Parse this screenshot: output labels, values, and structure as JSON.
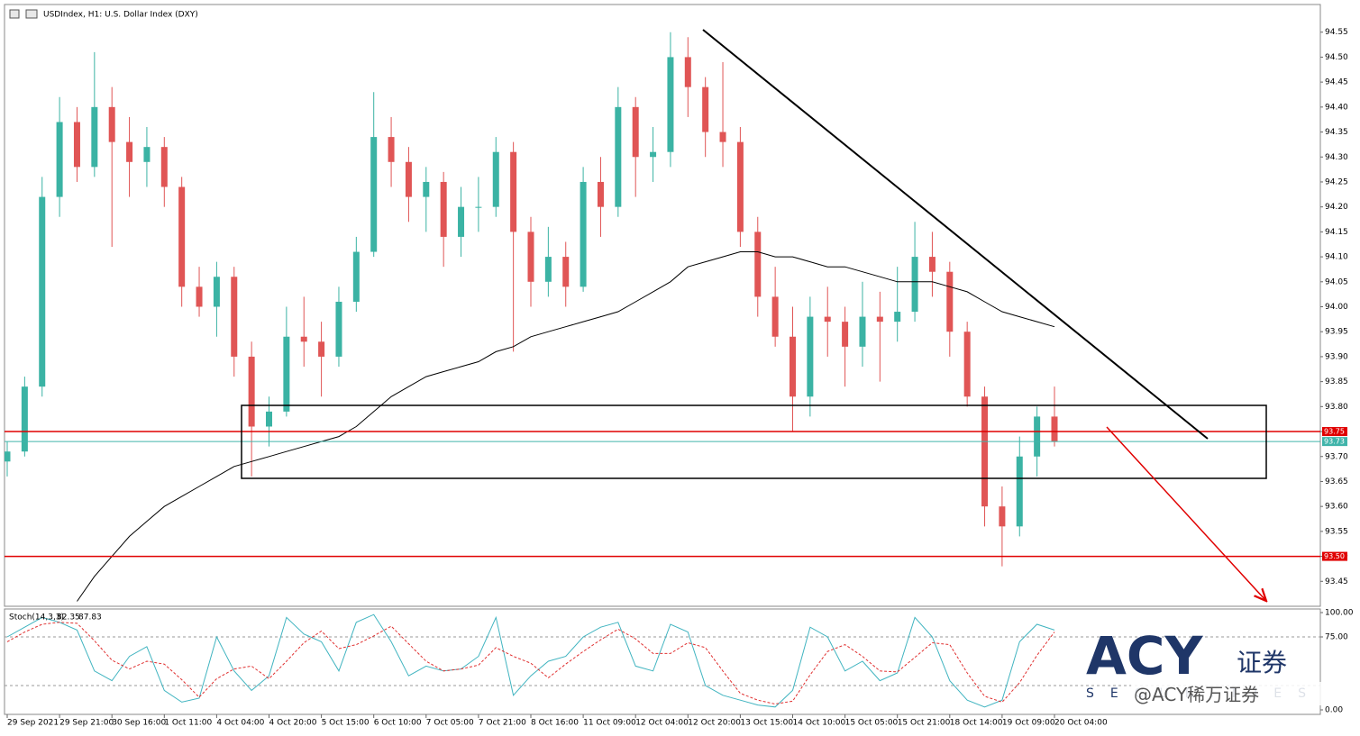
{
  "chart_data": {
    "type": "candlestick",
    "title": "USDIndex, H1:  U.S. Dollar Index (DXY)",
    "categories": [
      "29 Sep 2021",
      null,
      null,
      "29 Sep 21:00",
      null,
      null,
      "30 Sep 16:00",
      null,
      null,
      "1 Oct 11:00",
      null,
      null,
      "4 Oct 04:00",
      null,
      null,
      "4 Oct 20:00",
      null,
      null,
      "5 Oct 15:00",
      null,
      null,
      "6 Oct 10:00",
      null,
      null,
      "7 Oct 05:00",
      null,
      null,
      "7 Oct 21:00",
      null,
      null,
      "8 Oct 16:00",
      null,
      null,
      "11 Oct 09:00",
      null,
      null,
      "12 Oct 04:00",
      null,
      null,
      "12 Oct 20:00",
      null,
      null,
      "13 Oct 15:00",
      null,
      null,
      "14 Oct 10:00",
      null,
      null,
      "15 Oct 05:00",
      null,
      null,
      "15 Oct 21:00",
      null,
      null,
      "18 Oct 14:00",
      null,
      null,
      "19 Oct 09:00",
      null,
      null,
      "20 Oct 04:00"
    ],
    "ohlc": [
      [
        93.69,
        93.73,
        93.66,
        93.71
      ],
      [
        93.71,
        93.86,
        93.7,
        93.84
      ],
      [
        93.84,
        94.26,
        93.82,
        94.22
      ],
      [
        94.22,
        94.42,
        94.18,
        94.37
      ],
      [
        94.37,
        94.4,
        94.25,
        94.28
      ],
      [
        94.28,
        94.51,
        94.26,
        94.4
      ],
      [
        94.4,
        94.44,
        94.12,
        94.33
      ],
      [
        94.33,
        94.38,
        94.22,
        94.29
      ],
      [
        94.29,
        94.36,
        94.24,
        94.32
      ],
      [
        94.32,
        94.34,
        94.2,
        94.24
      ],
      [
        94.24,
        94.26,
        94.0,
        94.04
      ],
      [
        94.04,
        94.08,
        93.98,
        94.0
      ],
      [
        94.0,
        94.09,
        93.94,
        94.06
      ],
      [
        94.06,
        94.08,
        93.86,
        93.9
      ],
      [
        93.9,
        93.93,
        93.66,
        93.76
      ],
      [
        93.76,
        93.82,
        93.72,
        93.79
      ],
      [
        93.79,
        94.0,
        93.78,
        93.94
      ],
      [
        93.94,
        94.02,
        93.88,
        93.93
      ],
      [
        93.93,
        93.97,
        93.82,
        93.9
      ],
      [
        93.9,
        94.04,
        93.88,
        94.01
      ],
      [
        94.01,
        94.14,
        93.99,
        94.11
      ],
      [
        94.11,
        94.43,
        94.1,
        94.34
      ],
      [
        94.34,
        94.38,
        94.24,
        94.29
      ],
      [
        94.29,
        94.32,
        94.17,
        94.22
      ],
      [
        94.22,
        94.28,
        94.15,
        94.25
      ],
      [
        94.25,
        94.27,
        94.08,
        94.14
      ],
      [
        94.14,
        94.24,
        94.1,
        94.2
      ],
      [
        94.2,
        94.26,
        94.15,
        94.2
      ],
      [
        94.2,
        94.34,
        94.18,
        94.31
      ],
      [
        94.31,
        94.33,
        93.91,
        94.15
      ],
      [
        94.15,
        94.18,
        94.0,
        94.05
      ],
      [
        94.05,
        94.16,
        94.02,
        94.1
      ],
      [
        94.1,
        94.13,
        94.0,
        94.04
      ],
      [
        94.04,
        94.28,
        94.03,
        94.25
      ],
      [
        94.25,
        94.3,
        94.14,
        94.2
      ],
      [
        94.2,
        94.44,
        94.18,
        94.4
      ],
      [
        94.4,
        94.42,
        94.22,
        94.3
      ],
      [
        94.3,
        94.36,
        94.25,
        94.31
      ],
      [
        94.31,
        94.55,
        94.28,
        94.5
      ],
      [
        94.5,
        94.54,
        94.38,
        94.44
      ],
      [
        94.44,
        94.46,
        94.3,
        94.35
      ],
      [
        94.35,
        94.49,
        94.28,
        94.33
      ],
      [
        94.33,
        94.36,
        94.12,
        94.15
      ],
      [
        94.15,
        94.18,
        93.98,
        94.02
      ],
      [
        94.02,
        94.08,
        93.92,
        93.94
      ],
      [
        93.94,
        94.0,
        93.75,
        93.82
      ],
      [
        93.82,
        94.02,
        93.78,
        93.98
      ],
      [
        93.98,
        94.04,
        93.9,
        93.97
      ],
      [
        93.97,
        94.0,
        93.84,
        93.92
      ],
      [
        93.92,
        94.05,
        93.88,
        93.98
      ],
      [
        93.98,
        94.03,
        93.85,
        93.97
      ],
      [
        93.97,
        94.08,
        93.93,
        93.99
      ],
      [
        93.99,
        94.17,
        93.97,
        94.1
      ],
      [
        94.1,
        94.15,
        94.02,
        94.07
      ],
      [
        94.07,
        94.09,
        93.9,
        93.95
      ],
      [
        93.95,
        93.97,
        93.8,
        93.82
      ],
      [
        93.82,
        93.84,
        93.56,
        93.6
      ],
      [
        93.6,
        93.64,
        93.48,
        93.56
      ],
      [
        93.56,
        93.74,
        93.54,
        93.7
      ],
      [
        93.7,
        93.8,
        93.66,
        93.78
      ],
      [
        93.78,
        93.84,
        93.72,
        93.73
      ]
    ],
    "up_color": "#3bb3a4",
    "down_color": "#e05555",
    "moving_average": {
      "color": "#000000",
      "values": [
        null,
        null,
        null,
        null,
        93.41,
        93.46,
        93.5,
        93.54,
        93.57,
        93.6,
        93.62,
        93.64,
        93.66,
        93.68,
        93.69,
        93.7,
        93.71,
        93.72,
        93.73,
        93.74,
        93.76,
        93.79,
        93.82,
        93.84,
        93.86,
        93.87,
        93.88,
        93.89,
        93.91,
        93.92,
        93.94,
        93.95,
        93.96,
        93.97,
        93.98,
        93.99,
        94.01,
        94.03,
        94.05,
        94.08,
        94.09,
        94.1,
        94.11,
        94.11,
        94.1,
        94.1,
        94.09,
        94.08,
        94.08,
        94.07,
        94.06,
        94.05,
        94.05,
        94.05,
        94.04,
        94.03,
        94.01,
        93.99,
        93.98,
        93.97,
        93.96
      ]
    },
    "levels": [
      {
        "value": 93.75,
        "color": "#e00000"
      },
      {
        "value": 93.73,
        "color": "#40b4aa"
      },
      {
        "value": 93.5,
        "label": "93.50",
        "color": "#e00000"
      }
    ],
    "ylim": [
      93.4,
      94.6
    ],
    "yticks": [
      94.55,
      {
        "value": 94.5,
        "label": "94.50"
      },
      94.45,
      {
        "value": 94.4,
        "label": "94.40"
      },
      94.35,
      {
        "value": 94.3,
        "label": "94.30"
      },
      94.25,
      {
        "value": 94.2,
        "label": "94.20"
      },
      94.15,
      {
        "value": 94.1,
        "label": "94.10"
      },
      94.05,
      {
        "value": 94.0,
        "label": "94.00"
      },
      93.95,
      {
        "value": 93.9,
        "label": "93.90"
      },
      93.85,
      {
        "value": 93.8,
        "label": "93.80"
      },
      93.75,
      {
        "value": 93.7,
        "label": "93.70"
      },
      93.65,
      {
        "value": 93.6,
        "label": "93.60"
      },
      93.55,
      {
        "value": 93.5,
        "label": "93.50"
      },
      93.45
    ],
    "stochastic": {
      "label": "Stoch(14,3,3)",
      "readout": [
        82.35,
        87.83
      ],
      "ylim": [
        0,
        100
      ],
      "yticks": [
        {
          "value": 100,
          "label": "100.00"
        },
        {
          "value": 75,
          "label": "75.00"
        },
        {
          "value": 0,
          "label": "0.00"
        }
      ],
      "levels": [
        75,
        25
      ],
      "series": [
        {
          "color": "#40b4c0",
          "values": [
            75,
            85,
            95,
            90,
            82,
            40,
            30,
            55,
            65,
            20,
            8,
            12,
            75,
            40,
            20,
            35,
            95,
            78,
            70,
            40,
            90,
            98,
            70,
            35,
            45,
            40,
            42,
            55,
            95,
            15,
            35,
            50,
            55,
            75,
            85,
            90,
            45,
            40,
            88,
            80,
            25,
            15,
            10,
            5,
            3,
            20,
            85,
            75,
            40,
            50,
            30,
            38,
            95,
            75,
            30,
            10,
            3,
            10,
            70,
            88,
            82
          ]
        },
        {
          "color": "#e03030",
          "values": [
            70,
            80,
            88,
            90,
            89,
            71,
            51,
            42,
            50,
            47,
            31,
            13,
            32,
            42,
            45,
            32,
            50,
            69,
            81,
            63,
            67,
            76,
            86,
            68,
            50,
            40,
            42,
            46,
            64,
            55,
            48,
            33,
            47,
            60,
            72,
            83,
            73,
            58,
            58,
            69,
            64,
            40,
            17,
            10,
            6,
            9,
            36,
            60,
            67,
            55,
            40,
            39,
            54,
            69,
            67,
            38,
            14,
            8,
            28,
            56,
            80
          ]
        }
      ]
    },
    "watermark": {
      "logo": "ACY",
      "logo_cn": "证券",
      "tagline": "SECURITIES",
      "handle": "@ACY稀万证券"
    }
  }
}
